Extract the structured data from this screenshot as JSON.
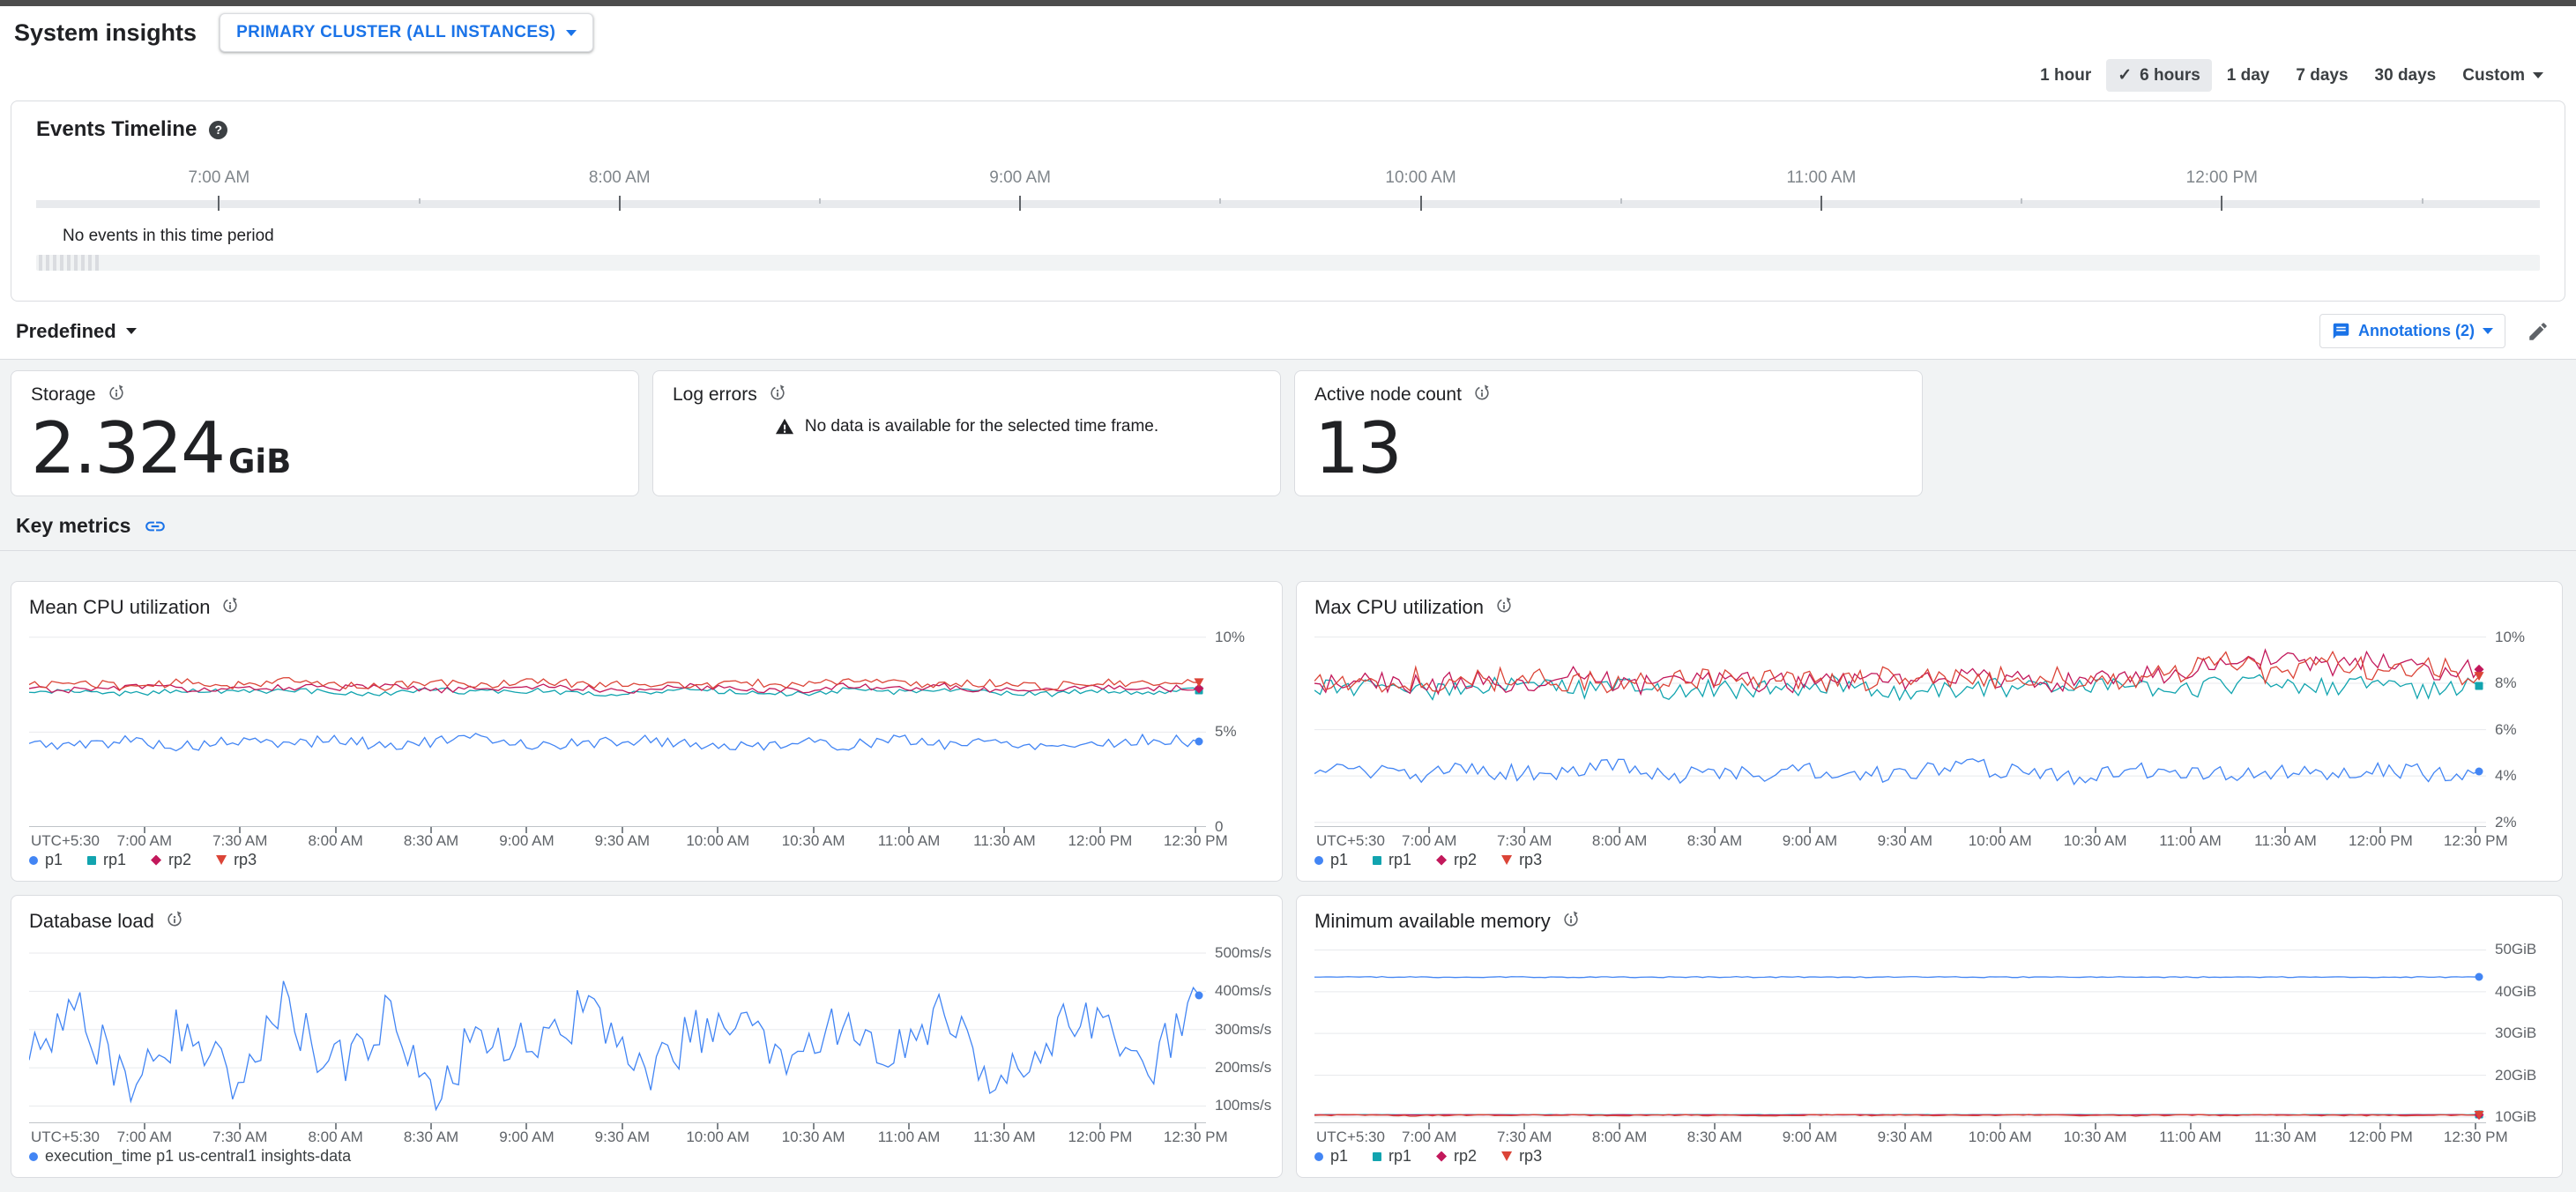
{
  "header": {
    "title": "System insights",
    "scope_selector": "PRIMARY CLUSTER (ALL INSTANCES)"
  },
  "time_range": {
    "options": [
      "1 hour",
      "6 hours",
      "1 day",
      "7 days",
      "30 days"
    ],
    "selected": "6 hours",
    "custom_label": "Custom"
  },
  "events_timeline": {
    "title": "Events Timeline",
    "hours": [
      "7:00 AM",
      "8:00 AM",
      "9:00 AM",
      "10:00 AM",
      "11:00 AM",
      "12:00 PM"
    ],
    "empty_message": "No events in this time period"
  },
  "toolbar": {
    "predefined_label": "Predefined",
    "annotations_label": "Annotations (2)"
  },
  "stat_cards": [
    {
      "title": "Storage",
      "value": "2.324",
      "unit": "GiB"
    },
    {
      "title": "Log errors",
      "no_data_message": "No data is available for the selected time frame."
    },
    {
      "title": "Active node count",
      "value": "13"
    }
  ],
  "key_metrics": {
    "title": "Key metrics"
  },
  "colors": {
    "accent": "#1a73e8",
    "grid": "#e8eaed",
    "axis": "#9aa0a6"
  },
  "chart_data": [
    {
      "id": "mean-cpu",
      "type": "line",
      "title": "Mean CPU utilization",
      "ylim": [
        0,
        10.5
      ],
      "yticks": [
        {
          "v": 10,
          "label": "10%"
        },
        {
          "v": 5,
          "label": "5%"
        },
        {
          "v": 0,
          "label": "0"
        }
      ],
      "timezone_label": "UTC+5:30",
      "x_ticks": [
        "7:00 AM",
        "7:30 AM",
        "8:00 AM",
        "8:30 AM",
        "9:00 AM",
        "9:30 AM",
        "10:00 AM",
        "10:30 AM",
        "11:00 AM",
        "11:30 AM",
        "12:00 PM",
        "12:30 PM"
      ],
      "series": [
        {
          "name": "p1",
          "color": "#4285f4",
          "marker": "circle",
          "noise": 0.3,
          "values": [
            4.4,
            4.3,
            4.6,
            4.2,
            4.5,
            4.4,
            4.6,
            4.3,
            4.5,
            4.7,
            4.3,
            4.4,
            4.6,
            4.4,
            4.2,
            4.5,
            4.3,
            4.6,
            4.4,
            4.5,
            4.3,
            4.4,
            4.6,
            4.5
          ]
        },
        {
          "name": "rp1",
          "color": "#12a4af",
          "marker": "square",
          "noise": 0.15,
          "values": [
            7.1,
            7.2,
            7.0,
            7.2,
            7.1,
            7.2,
            7.1,
            7.0,
            7.2,
            7.1,
            7.2,
            7.0,
            7.1,
            7.2,
            7.1,
            7.0,
            7.2,
            7.1,
            7.2,
            7.1,
            7.0,
            7.2,
            7.1,
            7.2
          ]
        },
        {
          "name": "rp2",
          "color": "#c2185b",
          "marker": "diamond",
          "noise": 0.18,
          "values": [
            7.3,
            7.2,
            7.4,
            7.3,
            7.2,
            7.4,
            7.3,
            7.4,
            7.2,
            7.3,
            7.4,
            7.3,
            7.2,
            7.4,
            7.3,
            7.2,
            7.4,
            7.3,
            7.4,
            7.2,
            7.3,
            7.4,
            7.3,
            7.3
          ]
        },
        {
          "name": "rp3",
          "color": "#db4437",
          "marker": "triangle-down",
          "noise": 0.22,
          "values": [
            7.5,
            7.6,
            7.4,
            7.6,
            7.5,
            7.7,
            7.5,
            7.4,
            7.6,
            7.5,
            7.7,
            7.5,
            7.6,
            7.4,
            7.6,
            7.5,
            7.7,
            7.6,
            7.5,
            7.6,
            7.4,
            7.6,
            7.5,
            7.6
          ]
        }
      ]
    },
    {
      "id": "max-cpu",
      "type": "line",
      "title": "Max CPU utilization",
      "ylim": [
        1.8,
        10.4
      ],
      "yticks": [
        {
          "v": 10,
          "label": "10%"
        },
        {
          "v": 8,
          "label": "8%"
        },
        {
          "v": 6,
          "label": "6%"
        },
        {
          "v": 4,
          "label": "4%"
        },
        {
          "v": 2,
          "label": "2%"
        }
      ],
      "timezone_label": "UTC+5:30",
      "x_ticks": [
        "7:00 AM",
        "7:30 AM",
        "8:00 AM",
        "8:30 AM",
        "9:00 AM",
        "9:30 AM",
        "10:00 AM",
        "10:30 AM",
        "11:00 AM",
        "11:30 AM",
        "12:00 PM",
        "12:30 PM"
      ],
      "series": [
        {
          "name": "p1",
          "color": "#4285f4",
          "marker": "circle",
          "noise": 0.38,
          "values": [
            4.1,
            4.2,
            4.0,
            4.3,
            4.1,
            4.2,
            4.4,
            4.0,
            4.2,
            4.1,
            4.3,
            4.0,
            4.2,
            4.4,
            4.1,
            4.0,
            4.2,
            4.3,
            4.1,
            4.2,
            4.0,
            4.3,
            4.1,
            4.2
          ]
        },
        {
          "name": "rp1",
          "color": "#12a4af",
          "marker": "square",
          "noise": 0.42,
          "values": [
            7.7,
            7.9,
            7.6,
            7.8,
            8.0,
            7.7,
            7.9,
            7.6,
            7.8,
            7.7,
            8.0,
            7.8,
            7.6,
            7.9,
            7.7,
            7.8,
            8.0,
            7.7,
            7.9,
            8.1,
            7.8,
            8.0,
            7.7,
            7.9
          ]
        },
        {
          "name": "rp2",
          "color": "#c2185b",
          "marker": "diamond",
          "noise": 0.45,
          "values": [
            8.0,
            8.2,
            7.9,
            8.1,
            8.0,
            8.3,
            8.0,
            7.9,
            8.2,
            8.0,
            8.1,
            8.3,
            8.0,
            8.2,
            8.1,
            8.0,
            8.3,
            8.4,
            8.8,
            9.2,
            8.6,
            9.0,
            8.4,
            8.6
          ]
        },
        {
          "name": "rp3",
          "color": "#db4437",
          "marker": "triangle-down",
          "noise": 0.5,
          "values": [
            8.1,
            7.9,
            8.2,
            8.0,
            8.3,
            8.1,
            8.0,
            8.2,
            8.1,
            8.3,
            8.0,
            8.2,
            8.4,
            8.1,
            8.3,
            8.2,
            8.0,
            8.5,
            8.9,
            8.4,
            9.1,
            8.5,
            8.7,
            8.3
          ]
        }
      ]
    },
    {
      "id": "db-load",
      "type": "line",
      "title": "Database load",
      "ylim": [
        55,
        530
      ],
      "yticks": [
        {
          "v": 500,
          "label": "500ms/s"
        },
        {
          "v": 400,
          "label": "400ms/s"
        },
        {
          "v": 300,
          "label": "300ms/s"
        },
        {
          "v": 200,
          "label": "200ms/s"
        },
        {
          "v": 100,
          "label": "100ms/s"
        }
      ],
      "timezone_label": "UTC+5:30",
      "x_ticks": [
        "7:00 AM",
        "7:30 AM",
        "8:00 AM",
        "8:30 AM",
        "9:00 AM",
        "9:30 AM",
        "10:00 AM",
        "10:30 AM",
        "11:00 AM",
        "11:30 AM",
        "12:00 PM",
        "12:30 PM"
      ],
      "series": [
        {
          "name": "execution_time p1 us-central1 insights-data",
          "color": "#4285f4",
          "marker": "circle",
          "noise": 70,
          "values": [
            220,
            340,
            150,
            310,
            180,
            360,
            200,
            330,
            160,
            300,
            230,
            370,
            190,
            280,
            350,
            170,
            320,
            240,
            360,
            150,
            290,
            340,
            180,
            390
          ]
        }
      ]
    },
    {
      "id": "min-memory",
      "type": "line",
      "title": "Minimum available memory",
      "ylim": [
        8.5,
        52
      ],
      "yticks": [
        {
          "v": 50,
          "label": "50GiB"
        },
        {
          "v": 40,
          "label": "40GiB"
        },
        {
          "v": 30,
          "label": "30GiB"
        },
        {
          "v": 20,
          "label": "20GiB"
        },
        {
          "v": 10,
          "label": "10GiB"
        }
      ],
      "timezone_label": "UTC+5:30",
      "x_ticks": [
        "7:00 AM",
        "7:30 AM",
        "8:00 AM",
        "8:30 AM",
        "9:00 AM",
        "9:30 AM",
        "10:00 AM",
        "10:30 AM",
        "11:00 AM",
        "11:30 AM",
        "12:00 PM",
        "12:30 PM"
      ],
      "series": [
        {
          "name": "p1",
          "color": "#4285f4",
          "marker": "circle",
          "noise": 0.12,
          "values": [
            43.5,
            43.5,
            43.5,
            43.5,
            43.5,
            43.5,
            43.5,
            43.5,
            43.5,
            43.5,
            43.5,
            43.5,
            43.5,
            43.5,
            43.5,
            43.5,
            43.5,
            43.5,
            43.5,
            43.5,
            43.5,
            43.5,
            43.5,
            43.5
          ]
        },
        {
          "name": "rp1",
          "color": "#12a4af",
          "marker": "square",
          "noise": 0.04,
          "values": [
            10.55,
            10.55,
            10.55,
            10.55,
            10.55,
            10.55,
            10.55,
            10.55,
            10.55,
            10.55,
            10.55,
            10.55,
            10.55,
            10.55,
            10.55,
            10.55,
            10.55,
            10.55,
            10.55,
            10.55,
            10.55,
            10.55,
            10.55,
            10.55
          ]
        },
        {
          "name": "rp2",
          "color": "#c2185b",
          "marker": "diamond",
          "noise": 0.04,
          "values": [
            10.5,
            10.5,
            10.5,
            10.5,
            10.5,
            10.5,
            10.5,
            10.5,
            10.5,
            10.5,
            10.5,
            10.5,
            10.5,
            10.5,
            10.5,
            10.5,
            10.5,
            10.5,
            10.5,
            10.5,
            10.5,
            10.5,
            10.5,
            10.5
          ]
        },
        {
          "name": "rp3",
          "color": "#db4437",
          "marker": "triangle-down",
          "noise": 0.14,
          "values": [
            10.4,
            10.5,
            10.3,
            10.45,
            10.4,
            10.5,
            10.35,
            10.45,
            10.4,
            10.3,
            10.5,
            10.4,
            10.45,
            10.35,
            10.5,
            10.4,
            10.3,
            10.45,
            10.4,
            10.5,
            10.35,
            10.4,
            10.45,
            10.4
          ]
        }
      ]
    }
  ]
}
